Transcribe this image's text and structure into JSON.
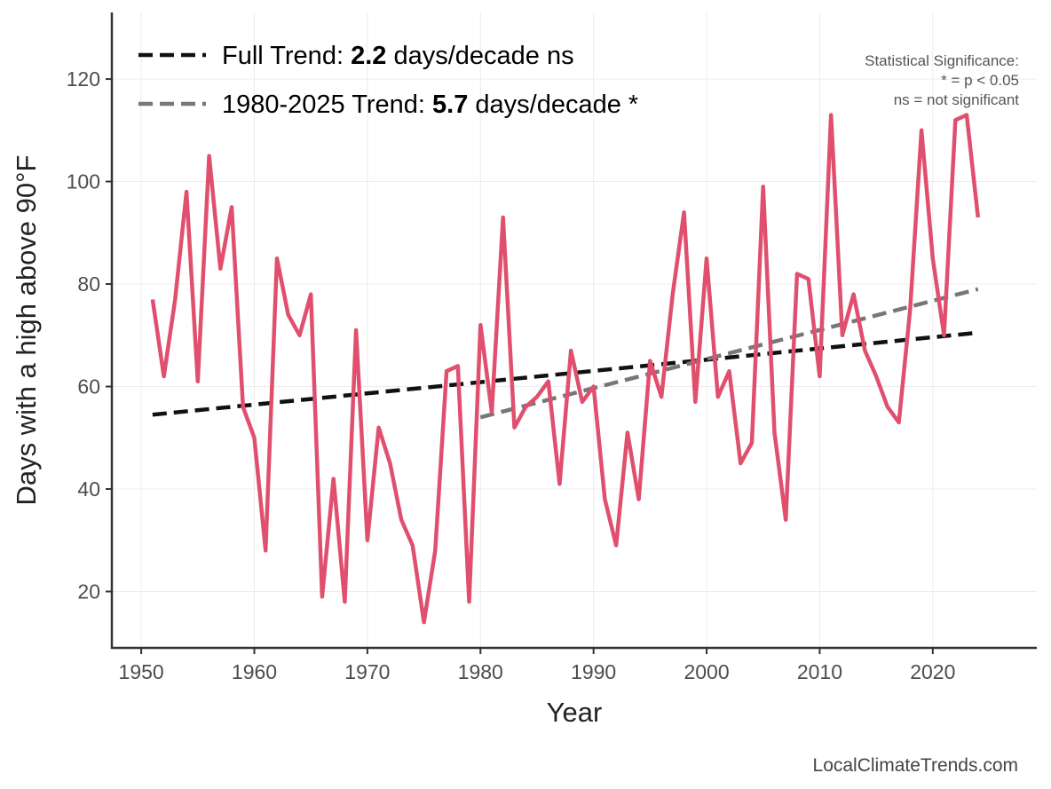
{
  "chart_data": {
    "type": "line",
    "xlabel": "Year",
    "ylabel": "Days with a high above 90°F",
    "xlim": [
      1947.4,
      2029.2
    ],
    "ylim": [
      9,
      133
    ],
    "xticks": [
      1950,
      1960,
      1970,
      1980,
      1990,
      2000,
      2010,
      2020
    ],
    "yticks": [
      20,
      40,
      60,
      80,
      100,
      120
    ],
    "grid": true,
    "legend_placement": "top-left",
    "x": [
      1951,
      1952,
      1953,
      1954,
      1955,
      1956,
      1957,
      1958,
      1959,
      1960,
      1961,
      1962,
      1963,
      1964,
      1965,
      1966,
      1967,
      1968,
      1969,
      1970,
      1971,
      1972,
      1973,
      1974,
      1975,
      1976,
      1977,
      1978,
      1979,
      1980,
      1981,
      1982,
      1983,
      1984,
      1985,
      1986,
      1987,
      1988,
      1989,
      1990,
      1991,
      1992,
      1993,
      1994,
      1995,
      1996,
      1997,
      1998,
      1999,
      2000,
      2001,
      2002,
      2003,
      2004,
      2005,
      2006,
      2007,
      2008,
      2009,
      2010,
      2011,
      2012,
      2013,
      2014,
      2015,
      2016,
      2017,
      2018,
      2019,
      2020,
      2021,
      2022,
      2023,
      2024
    ],
    "values": [
      77,
      62,
      77,
      98,
      61,
      105,
      83,
      95,
      56,
      50,
      28,
      85,
      74,
      70,
      78,
      19,
      42,
      18,
      71,
      30,
      52,
      45,
      34,
      29,
      14,
      28,
      63,
      64,
      18,
      72,
      55,
      93,
      52,
      56,
      58,
      61,
      41,
      67,
      57,
      60,
      38,
      29,
      51,
      38,
      65,
      58,
      78,
      94,
      57,
      85,
      58,
      63,
      45,
      49,
      99,
      51,
      34,
      82,
      81,
      62,
      113,
      70,
      78,
      67,
      62,
      56,
      53,
      75,
      110,
      85,
      70,
      112,
      113,
      93
    ],
    "series_color": "#e0506e",
    "trends": [
      {
        "label_prefix": "Full Trend: ",
        "rate": "2.2",
        "label_suffix": " days/decade ns",
        "x": [
          1951,
          2024
        ],
        "y": [
          54.5,
          70.5
        ],
        "color": "#111111"
      },
      {
        "label_prefix": "1980-2025 Trend: ",
        "rate": "5.7",
        "label_suffix": " days/decade *",
        "x": [
          1980,
          2024
        ],
        "y": [
          54,
          79
        ],
        "color": "#777777"
      }
    ],
    "annotation": [
      "Statistical Significance:",
      "* = p < 0.05",
      "ns = not significant"
    ]
  },
  "credit": "LocalClimateTrends.com"
}
